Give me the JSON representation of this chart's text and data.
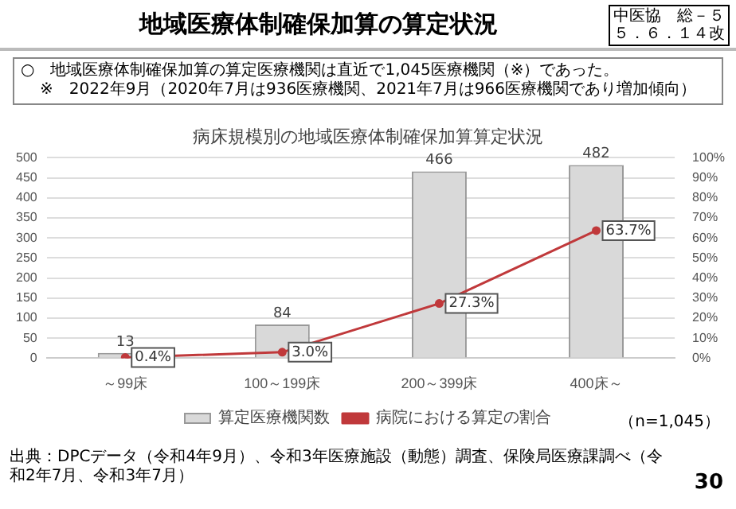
{
  "chart_data": {
    "type": "bar",
    "title": "地域医療体制確保加算の算定状況",
    "subtitle": "病床規模別の地域医療体制確保加算算定状況",
    "categories": [
      "～99床",
      "100～199床",
      "200～399床",
      "400床～"
    ],
    "series": [
      {
        "name": "算定医療機関数",
        "color": "#d9d9d9",
        "values": [
          13,
          84,
          466,
          482
        ],
        "value_labels": [
          "13",
          "84",
          "466",
          "482"
        ]
      },
      {
        "name": "病院における算定の割合",
        "type": "line",
        "axis": "y2",
        "color": "#c0393b",
        "values": [
          0.4,
          3.0,
          27.3,
          63.7
        ],
        "value_labels": [
          "0.4%",
          "3.0%",
          "27.3%",
          "63.7%"
        ]
      }
    ],
    "ylim": [
      0,
      500
    ],
    "yticks": [
      0,
      50,
      100,
      150,
      200,
      250,
      300,
      350,
      400,
      450,
      500
    ],
    "y2lim": [
      0,
      100
    ],
    "y2ticks": [
      {
        "value": 0,
        "label": "0%"
      },
      {
        "value": 10,
        "label": "10%"
      },
      {
        "value": 20,
        "label": "20%"
      },
      {
        "value": 30,
        "label": "30%"
      },
      {
        "value": 40,
        "label": "40%"
      },
      {
        "value": 50,
        "label": "50%"
      },
      {
        "value": 60,
        "label": "60%"
      },
      {
        "value": 70,
        "label": "70%"
      },
      {
        "value": 80,
        "label": "80%"
      },
      {
        "value": 90,
        "label": "90%"
      },
      {
        "value": 100,
        "label": "100%"
      }
    ],
    "grid": "y",
    "legend": "bottom",
    "marker": "circle",
    "annotations": [
      "中医協　総－５",
      "５．６．１４改",
      "○　地域医療体制確保加算の算定医療機関は直近で1,045医療機関（※）であった。",
      "※　2022年9月（2020年7月は936医療機関、2021年7月は966医療機関であり増加傾向）",
      "（n=1,045）",
      "出典：DPCデータ（令和4年9月）、令和3年医療施設（動態）調査、保険局医療課調べ（令和2年7月、令和3年7月）",
      "30"
    ]
  }
}
